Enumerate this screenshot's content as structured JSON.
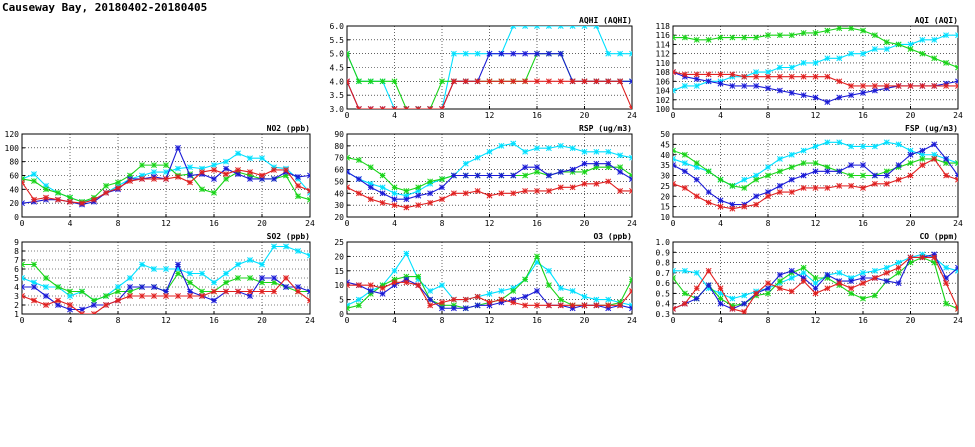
{
  "page": {
    "title": "Causeway Bay, 20180402-20180405"
  },
  "colors": {
    "cyan": "#00e0ff",
    "green": "#19d419",
    "blue": "#1a1ad6",
    "red": "#e02020"
  },
  "chart_data": [
    {
      "id": "aqhi",
      "type": "line",
      "title": "AQHI (AQHI)",
      "xlim": [
        0,
        24
      ],
      "xticks": [
        0,
        4,
        8,
        12,
        16,
        20,
        24
      ],
      "ylim": [
        3.0,
        6.0
      ],
      "yticks": [
        "3.0",
        "3.5",
        "4.0",
        "4.5",
        "5.0",
        "5.5",
        "6.0"
      ],
      "grid": true,
      "series": [
        {
          "color": "cyan",
          "values": [
            5,
            4,
            4,
            4,
            3,
            3,
            3,
            3,
            3,
            5,
            5,
            5,
            5,
            5,
            6,
            6,
            6,
            6,
            6,
            6,
            6,
            6,
            5,
            5,
            5
          ]
        },
        {
          "color": "green",
          "values": [
            5,
            4,
            4,
            4,
            4,
            3,
            3,
            3,
            4,
            4,
            4,
            4,
            4,
            4,
            4,
            4,
            5,
            5,
            5,
            4,
            4,
            4,
            4,
            4,
            4
          ]
        },
        {
          "color": "blue",
          "values": [
            4,
            3,
            3,
            3,
            3,
            3,
            3,
            3,
            3,
            4,
            4,
            4,
            5,
            5,
            5,
            5,
            5,
            5,
            5,
            4,
            4,
            4,
            4,
            4,
            4
          ]
        },
        {
          "color": "red",
          "values": [
            4,
            3,
            3,
            3,
            3,
            3,
            3,
            3,
            3,
            4,
            4,
            4,
            4,
            4,
            4,
            4,
            4,
            4,
            4,
            4,
            4,
            4,
            4,
            4,
            3
          ]
        }
      ]
    },
    {
      "id": "aqi",
      "type": "line",
      "title": "AQI (AQI)",
      "xlim": [
        0,
        24
      ],
      "xticks": [
        0,
        4,
        8,
        12,
        16,
        20,
        24
      ],
      "ylim": [
        100,
        118
      ],
      "yticks": [
        "100",
        "102",
        "104",
        "106",
        "108",
        "110",
        "112",
        "114",
        "116",
        "118"
      ],
      "grid": true,
      "series": [
        {
          "color": "cyan",
          "values": [
            104,
            105,
            105,
            106,
            106,
            107,
            107,
            108,
            108,
            109,
            109,
            110,
            110,
            111,
            111,
            112,
            112,
            113,
            113,
            114,
            114,
            115,
            115,
            116,
            116
          ]
        },
        {
          "color": "green",
          "values": [
            115.5,
            115.5,
            115,
            115,
            115.5,
            115.5,
            115.5,
            115.5,
            116,
            116,
            116,
            116.5,
            116.5,
            117,
            117.5,
            117.5,
            117,
            116,
            114.5,
            114,
            113,
            112,
            111,
            110,
            109
          ]
        },
        {
          "color": "blue",
          "values": [
            108,
            107,
            106.5,
            106,
            105.5,
            105,
            105,
            105,
            104.5,
            104,
            103.5,
            103,
            102.5,
            101.5,
            102.5,
            103,
            103.5,
            104,
            104.5,
            105,
            105,
            105,
            105,
            105.5,
            106
          ]
        },
        {
          "color": "red",
          "values": [
            108,
            107.5,
            107.5,
            107.5,
            107.5,
            107.5,
            107,
            107,
            107,
            107,
            107,
            107,
            107,
            107,
            106,
            105,
            105,
            105,
            105,
            105,
            105,
            105,
            105,
            105,
            105
          ]
        }
      ]
    },
    {
      "id": "no2",
      "type": "line",
      "title": "NO2 (ppb)",
      "xlim": [
        0,
        24
      ],
      "xticks": [
        0,
        4,
        8,
        12,
        16,
        20,
        24
      ],
      "ylim": [
        0,
        120
      ],
      "yticks": [
        "0",
        "20",
        "40",
        "60",
        "80",
        "100",
        "120"
      ],
      "grid": true,
      "series": [
        {
          "color": "cyan",
          "values": [
            55,
            62,
            45,
            35,
            28,
            22,
            25,
            35,
            45,
            55,
            60,
            65,
            65,
            70,
            72,
            70,
            75,
            80,
            92,
            85,
            85,
            72,
            70,
            55,
            35
          ]
        },
        {
          "color": "green",
          "values": [
            55,
            52,
            40,
            35,
            28,
            22,
            28,
            45,
            50,
            60,
            75,
            75,
            75,
            60,
            62,
            40,
            35,
            55,
            65,
            60,
            55,
            55,
            60,
            30,
            25
          ]
        },
        {
          "color": "blue",
          "values": [
            20,
            22,
            25,
            25,
            22,
            18,
            22,
            35,
            40,
            55,
            55,
            58,
            55,
            100,
            60,
            62,
            55,
            70,
            62,
            55,
            55,
            55,
            65,
            58,
            60
          ]
        },
        {
          "color": "red",
          "values": [
            50,
            25,
            28,
            25,
            22,
            20,
            25,
            35,
            42,
            52,
            55,
            55,
            55,
            58,
            50,
            65,
            68,
            62,
            68,
            65,
            60,
            68,
            68,
            45,
            38
          ]
        }
      ]
    },
    {
      "id": "rsp",
      "type": "line",
      "title": "RSP (ug/m3)",
      "xlim": [
        0,
        24
      ],
      "xticks": [
        0,
        4,
        8,
        12,
        16,
        20,
        24
      ],
      "ylim": [
        20,
        90
      ],
      "yticks": [
        "20",
        "30",
        "40",
        "50",
        "60",
        "70",
        "80",
        "90"
      ],
      "grid": true,
      "series": [
        {
          "color": "cyan",
          "values": [
            58,
            52,
            48,
            45,
            40,
            38,
            42,
            48,
            52,
            55,
            65,
            70,
            75,
            80,
            82,
            75,
            78,
            78,
            80,
            78,
            75,
            75,
            75,
            72,
            70
          ]
        },
        {
          "color": "green",
          "values": [
            70,
            68,
            62,
            55,
            45,
            42,
            45,
            50,
            52,
            55,
            55,
            55,
            55,
            55,
            55,
            55,
            58,
            55,
            58,
            58,
            58,
            62,
            62,
            62,
            55
          ]
        },
        {
          "color": "blue",
          "values": [
            58,
            52,
            45,
            40,
            35,
            35,
            38,
            40,
            45,
            55,
            55,
            55,
            55,
            55,
            55,
            62,
            62,
            55,
            58,
            60,
            65,
            65,
            65,
            58,
            52
          ]
        },
        {
          "color": "red",
          "values": [
            45,
            40,
            35,
            32,
            30,
            28,
            30,
            32,
            35,
            40,
            40,
            42,
            38,
            40,
            40,
            42,
            42,
            42,
            45,
            45,
            48,
            48,
            50,
            42,
            42
          ]
        }
      ]
    },
    {
      "id": "fsp",
      "type": "line",
      "title": "FSP (ug/m3)",
      "xlim": [
        0,
        24
      ],
      "xticks": [
        0,
        4,
        8,
        12,
        16,
        20,
        24
      ],
      "ylim": [
        10,
        50
      ],
      "yticks": [
        "10",
        "15",
        "20",
        "25",
        "30",
        "35",
        "40",
        "45",
        "50"
      ],
      "grid": true,
      "series": [
        {
          "color": "cyan",
          "values": [
            38,
            36,
            34,
            32,
            28,
            25,
            28,
            30,
            34,
            38,
            40,
            42,
            44,
            46,
            46,
            44,
            44,
            44,
            46,
            45,
            42,
            40,
            40,
            38,
            36
          ]
        },
        {
          "color": "green",
          "values": [
            42,
            40,
            36,
            32,
            28,
            25,
            24,
            28,
            30,
            32,
            34,
            36,
            36,
            34,
            32,
            30,
            30,
            30,
            32,
            34,
            36,
            38,
            38,
            36,
            36
          ]
        },
        {
          "color": "blue",
          "values": [
            35,
            32,
            28,
            22,
            18,
            16,
            16,
            20,
            22,
            25,
            28,
            30,
            32,
            32,
            32,
            35,
            35,
            30,
            30,
            35,
            40,
            42,
            45,
            38,
            30
          ]
        },
        {
          "color": "red",
          "values": [
            26,
            24,
            20,
            17,
            15,
            14,
            15,
            16,
            20,
            22,
            22,
            24,
            24,
            24,
            25,
            25,
            24,
            26,
            26,
            28,
            30,
            35,
            38,
            30,
            28
          ]
        }
      ]
    },
    {
      "id": "so2",
      "type": "line",
      "title": "SO2 (ppb)",
      "xlim": [
        0,
        24
      ],
      "xticks": [
        0,
        4,
        8,
        12,
        16,
        20,
        24
      ],
      "ylim": [
        1,
        9
      ],
      "yticks": [
        "1",
        "2",
        "3",
        "4",
        "5",
        "6",
        "7",
        "8",
        "9"
      ],
      "grid": true,
      "series": [
        {
          "color": "cyan",
          "values": [
            5,
            4.5,
            4,
            4,
            3,
            3.5,
            2.5,
            3,
            4,
            5,
            6.5,
            6,
            6,
            6,
            5.5,
            5.5,
            4.5,
            5.5,
            6.5,
            7,
            6.5,
            8.5,
            8.5,
            8,
            7.5
          ]
        },
        {
          "color": "green",
          "values": [
            6.5,
            6.5,
            5,
            4,
            3.5,
            3.5,
            2.5,
            3,
            3.5,
            3.5,
            4,
            4,
            3.5,
            5.5,
            4.5,
            3.5,
            3.5,
            4.5,
            5,
            5,
            4.5,
            4.5,
            4,
            3.5,
            3.5
          ]
        },
        {
          "color": "blue",
          "values": [
            4,
            4,
            3,
            2,
            1.5,
            1.5,
            2,
            2,
            2.5,
            4,
            4,
            4,
            3.5,
            6.5,
            3.5,
            3,
            2.5,
            3.5,
            3.5,
            3,
            5,
            5,
            4,
            4,
            3.5
          ]
        },
        {
          "color": "red",
          "values": [
            3,
            2.5,
            2,
            2.5,
            2,
            1,
            1,
            2,
            2.5,
            3,
            3,
            3,
            3,
            3,
            3,
            3,
            3.5,
            3.5,
            3.5,
            3.5,
            3.5,
            3.5,
            5,
            3.5,
            2.5
          ]
        }
      ]
    },
    {
      "id": "o3",
      "type": "line",
      "title": "O3 (ppb)",
      "xlim": [
        0,
        24
      ],
      "xticks": [
        0,
        4,
        8,
        12,
        16,
        20,
        24
      ],
      "ylim": [
        0,
        25
      ],
      "yticks": [
        "0",
        "5",
        "10",
        "15",
        "20",
        "25"
      ],
      "grid": true,
      "series": [
        {
          "color": "cyan",
          "values": [
            3,
            5,
            8,
            10,
            15,
            21,
            12,
            8,
            10,
            5,
            5,
            6,
            7,
            8,
            9,
            12,
            18,
            15,
            9,
            8,
            6,
            5,
            5,
            4,
            3
          ]
        },
        {
          "color": "green",
          "values": [
            2,
            3,
            7,
            10,
            12,
            13,
            13,
            5,
            3,
            3,
            2,
            3,
            4,
            5,
            8,
            12,
            20,
            10,
            5,
            3,
            3,
            3,
            3,
            4,
            12
          ]
        },
        {
          "color": "blue",
          "values": [
            11,
            10,
            8,
            7,
            10,
            12,
            10,
            5,
            2,
            2,
            2,
            3,
            3,
            4,
            5,
            6,
            8,
            3,
            3,
            2,
            3,
            3,
            2,
            3,
            2
          ]
        },
        {
          "color": "red",
          "values": [
            10,
            10,
            10,
            9,
            11,
            11,
            10,
            3,
            4,
            5,
            5,
            6,
            4,
            5,
            4,
            3,
            3,
            3,
            3,
            3,
            3,
            3,
            3,
            3,
            8
          ]
        }
      ]
    },
    {
      "id": "co",
      "type": "line",
      "title": "CO (ppm)",
      "xlim": [
        0,
        24
      ],
      "xticks": [
        0,
        4,
        8,
        12,
        16,
        20,
        24
      ],
      "ylim": [
        0.3,
        1.0
      ],
      "yticks": [
        "0.3",
        "0.4",
        "0.5",
        "0.6",
        "0.7",
        "0.8",
        "0.9",
        "1.0"
      ],
      "grid": true,
      "series": [
        {
          "color": "cyan",
          "values": [
            0.72,
            0.72,
            0.7,
            0.55,
            0.5,
            0.45,
            0.48,
            0.52,
            0.55,
            0.6,
            0.65,
            0.7,
            0.6,
            0.68,
            0.7,
            0.65,
            0.7,
            0.72,
            0.75,
            0.8,
            0.85,
            0.88,
            0.85,
            0.75,
            0.72
          ]
        },
        {
          "color": "green",
          "values": [
            0.65,
            0.5,
            0.45,
            0.58,
            0.45,
            0.38,
            0.4,
            0.48,
            0.5,
            0.62,
            0.7,
            0.75,
            0.65,
            0.65,
            0.58,
            0.5,
            0.45,
            0.48,
            0.62,
            0.7,
            0.8,
            0.85,
            0.8,
            0.4,
            0.35
          ]
        },
        {
          "color": "blue",
          "values": [
            0.35,
            0.4,
            0.45,
            0.58,
            0.4,
            0.35,
            0.4,
            0.5,
            0.55,
            0.68,
            0.72,
            0.65,
            0.55,
            0.68,
            0.62,
            0.62,
            0.65,
            0.65,
            0.62,
            0.6,
            0.85,
            0.85,
            0.88,
            0.65,
            0.75
          ]
        },
        {
          "color": "red",
          "values": [
            0.35,
            0.4,
            0.55,
            0.72,
            0.55,
            0.35,
            0.32,
            0.5,
            0.6,
            0.55,
            0.52,
            0.62,
            0.5,
            0.55,
            0.6,
            0.55,
            0.6,
            0.65,
            0.7,
            0.75,
            0.85,
            0.85,
            0.85,
            0.6,
            0.35
          ]
        }
      ]
    }
  ]
}
